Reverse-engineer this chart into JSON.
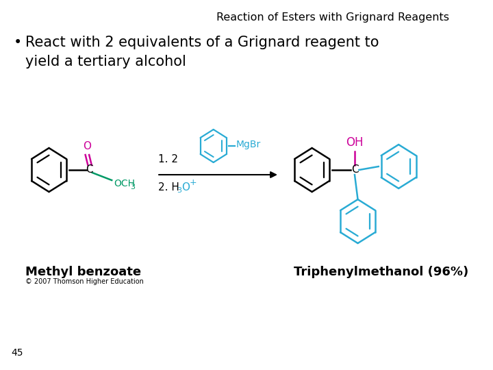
{
  "title": "Reaction of Esters with Grignard Reagents",
  "bullet": "React with 2 equivalents of a Grignard reagent to\nyield a tertiary alcohol",
  "label_left": "Methyl benzoate",
  "label_right": "Triphenylmethanol (96%)",
  "copyright": "© 2007 Thomson Higher Education",
  "page_number": "45",
  "color_magenta": "#CC0099",
  "color_green": "#009966",
  "color_cyan": "#29ABD4",
  "color_black": "#000000",
  "color_bg": "#FFFFFF",
  "step1_text": "1. 2",
  "mgbr_text": "MgBr",
  "oh_text": "OH"
}
